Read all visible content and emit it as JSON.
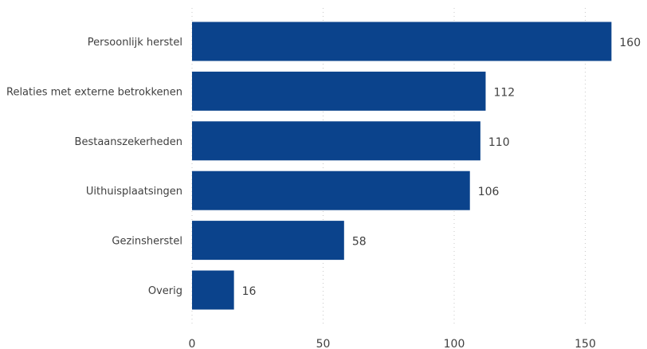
{
  "chart_data": {
    "type": "bar",
    "orientation": "horizontal",
    "categories": [
      "Persoonlijk herstel",
      "Relaties met externe betrokkenen",
      "Bestaanszekerheden",
      "Uithuisplaatsingen",
      "Gezinsherstel",
      "Overig"
    ],
    "values": [
      160,
      112,
      110,
      106,
      58,
      16
    ],
    "title": "",
    "xlabel": "",
    "ylabel": "",
    "xlim": [
      0,
      165
    ],
    "xticks": [
      0,
      50,
      100,
      150
    ],
    "grid": true,
    "data_labels": true,
    "bar_color": "#0b438c"
  }
}
